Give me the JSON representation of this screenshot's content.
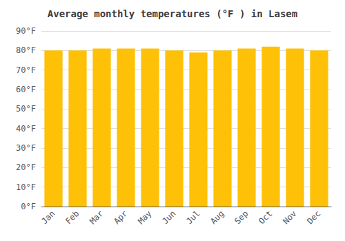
{
  "chart_data": {
    "type": "bar",
    "title": "Average monthly temperatures (°F ) in Lasem",
    "categories": [
      "Jan",
      "Feb",
      "Mar",
      "Apr",
      "May",
      "Jun",
      "Jul",
      "Aug",
      "Sep",
      "Oct",
      "Nov",
      "Dec"
    ],
    "values": [
      80,
      80,
      81,
      81,
      81,
      80,
      79,
      80,
      81,
      82,
      81,
      80
    ],
    "color": "#FFC107",
    "ylim": [
      0,
      90
    ],
    "yticks": [
      {
        "value": 0,
        "label": "0°F"
      },
      {
        "value": 10,
        "label": "10°F"
      },
      {
        "value": 20,
        "label": "20°F"
      },
      {
        "value": 30,
        "label": "30°F"
      },
      {
        "value": 40,
        "label": "40°F"
      },
      {
        "value": 50,
        "label": "50°F"
      },
      {
        "value": 60,
        "label": "60°F"
      },
      {
        "value": 70,
        "label": "70°F"
      },
      {
        "value": 80,
        "label": "80°F"
      },
      {
        "value": 90,
        "label": "90°F"
      }
    ],
    "grid": true
  }
}
